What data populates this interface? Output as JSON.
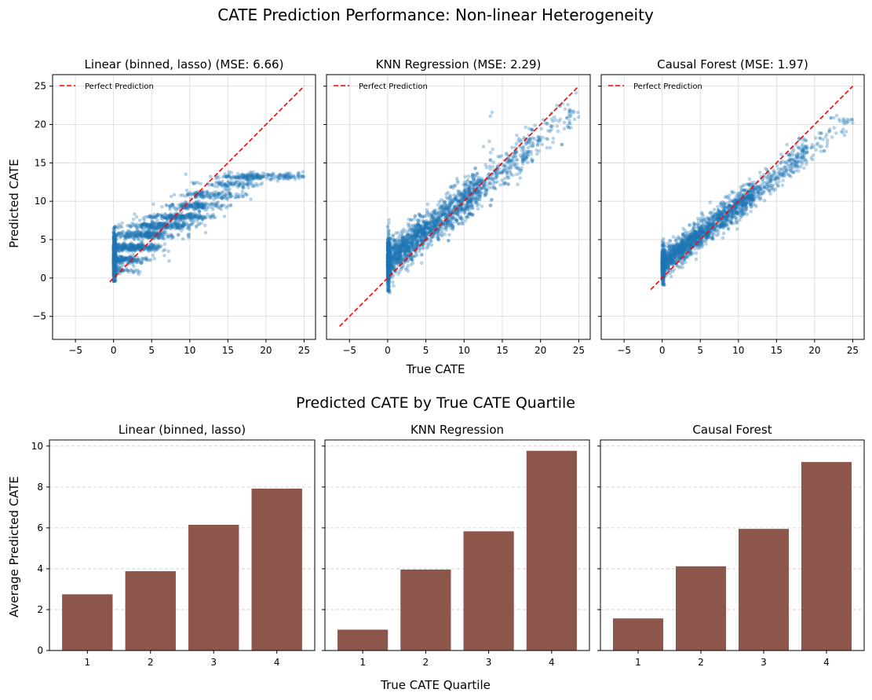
{
  "figure": {
    "title": "CATE Prediction Performance: Non-linear Heterogeneity",
    "scatter_xlabel": "True CATE",
    "scatter_ylabel": "Predicted CATE",
    "bar_suptitle": "Predicted CATE by True CATE Quartile",
    "bar_xlabel": "True CATE Quartile",
    "bar_ylabel": "Average Predicted CATE",
    "colors": {
      "scatter": "#1f77b4",
      "reference_line": "#ff0000",
      "bar": "#8c564b",
      "grid": "#d9d9d9"
    }
  },
  "chart_data": [
    {
      "type": "scatter",
      "title": "Linear (binned, lasso) (MSE: 6.66)",
      "legend": "Perfect Prediction",
      "legend_position": "top-left",
      "grid": true,
      "xlim": [
        -8,
        26.5
      ],
      "ylim": [
        -8,
        26.5
      ],
      "xticks": [
        -5,
        0,
        5,
        10,
        15,
        20,
        25
      ],
      "yticks": [
        -5,
        0,
        5,
        10,
        15,
        20,
        25
      ],
      "reference_line": {
        "from": [
          -0.5,
          -0.5
        ],
        "to": [
          25,
          25
        ]
      },
      "model": "linear_binned"
    },
    {
      "type": "scatter",
      "title": "KNN Regression (MSE: 2.29)",
      "legend": "Perfect Prediction",
      "legend_position": "top-left",
      "grid": true,
      "xlim": [
        -8,
        26.5
      ],
      "ylim": [
        -8,
        26.5
      ],
      "xticks": [
        -5,
        0,
        5,
        10,
        15,
        20,
        25
      ],
      "yticks": [
        -5,
        0,
        5,
        10,
        15,
        20,
        25
      ],
      "reference_line": {
        "from": [
          -6.3,
          -6.3
        ],
        "to": [
          25,
          25
        ]
      },
      "model": "knn"
    },
    {
      "type": "scatter",
      "title": "Causal Forest (MSE: 1.97)",
      "legend": "Perfect Prediction",
      "legend_position": "top-left",
      "grid": true,
      "xlim": [
        -8,
        26.5
      ],
      "ylim": [
        -8,
        26.5
      ],
      "xticks": [
        -5,
        0,
        5,
        10,
        15,
        20,
        25
      ],
      "yticks": [
        -5,
        0,
        5,
        10,
        15,
        20,
        25
      ],
      "reference_line": {
        "from": [
          -1.5,
          -1.5
        ],
        "to": [
          25,
          25
        ]
      },
      "model": "forest"
    },
    {
      "type": "bar",
      "title": "Linear (binned, lasso)",
      "categories": [
        "1",
        "2",
        "3",
        "4"
      ],
      "values": [
        2.75,
        3.88,
        6.15,
        7.92
      ],
      "ylim": [
        0,
        10.3
      ],
      "yticks": [
        0,
        2,
        4,
        6,
        8,
        10
      ],
      "grid": "y-dashed"
    },
    {
      "type": "bar",
      "title": "KNN Regression",
      "categories": [
        "1",
        "2",
        "3",
        "4"
      ],
      "values": [
        1.02,
        3.96,
        5.83,
        9.77
      ],
      "ylim": [
        0,
        10.3
      ],
      "yticks": [
        0,
        2,
        4,
        6,
        8,
        10
      ],
      "grid": "y-dashed"
    },
    {
      "type": "bar",
      "title": "Causal Forest",
      "categories": [
        "1",
        "2",
        "3",
        "4"
      ],
      "values": [
        1.57,
        4.12,
        5.95,
        9.22
      ],
      "ylim": [
        0,
        10.3
      ],
      "yticks": [
        0,
        2,
        4,
        6,
        8,
        10
      ],
      "grid": "y-dashed"
    }
  ]
}
